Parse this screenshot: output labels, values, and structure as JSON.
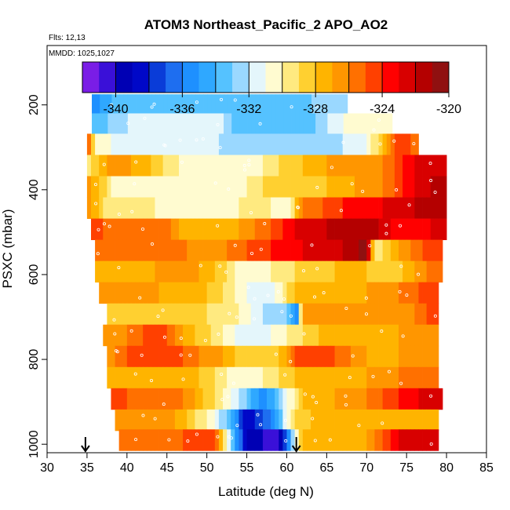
{
  "chart_data": {
    "type": "heatmap",
    "title": "ATOM3 Northeast_Pacific_2 APO_AO2",
    "flights_text": "Flts: 12,13",
    "dates_text": "MMDD: 1025,1027",
    "xlabel": "Latitude (deg N)",
    "ylabel": "PSXC (mbar)",
    "xlim": [
      30,
      85
    ],
    "ylim": [
      1020,
      60
    ],
    "x_ticks": [
      30,
      35,
      40,
      45,
      50,
      55,
      60,
      65,
      70,
      75,
      80,
      85
    ],
    "y_ticks": [
      200,
      400,
      600,
      800,
      1000
    ],
    "colorbar": {
      "min": -342,
      "max": -320,
      "ticks": [
        -340,
        -336,
        -332,
        -328,
        -324,
        -320
      ],
      "colors": [
        "#7a1de6",
        "#3a10d8",
        "#0000b4",
        "#0008c8",
        "#0a3cd8",
        "#1e6ef0",
        "#1e90ff",
        "#2fa8ff",
        "#55c2ff",
        "#9ad8ff",
        "#e4f6fb",
        "#fffbd0",
        "#ffea80",
        "#ffd030",
        "#ffb400",
        "#ff9600",
        "#ff7000",
        "#ff4000",
        "#ff0000",
        "#d80000",
        "#b40000",
        "#901010"
      ]
    },
    "arrows": [
      {
        "lat": 34.8,
        "label": "profile marker"
      },
      {
        "lat": 61.2,
        "label": "profile marker"
      }
    ],
    "rows": [
      {
        "p": 200,
        "lat_start": 35.6,
        "lat_end": 67.6,
        "knots": [
          [
            35.6,
            -336
          ],
          [
            38,
            -334
          ],
          [
            55,
            -334
          ],
          [
            63,
            -333
          ],
          [
            67.6,
            -333
          ]
        ]
      },
      {
        "p": 245,
        "lat_start": 35.6,
        "lat_end": 73.2,
        "knots": [
          [
            35.6,
            -334
          ],
          [
            40,
            -332
          ],
          [
            52,
            -331.5
          ],
          [
            53.5,
            -334
          ],
          [
            62,
            -334
          ],
          [
            67,
            -331
          ],
          [
            73.2,
            -330
          ]
        ]
      },
      {
        "p": 293,
        "lat_start": 35.0,
        "lat_end": 76.5,
        "knots": [
          [
            35.0,
            -324
          ],
          [
            36,
            -330
          ],
          [
            40,
            -332
          ],
          [
            48,
            -331
          ],
          [
            55,
            -333
          ],
          [
            64,
            -333
          ],
          [
            70,
            -331
          ],
          [
            72,
            -328
          ],
          [
            74,
            -324
          ],
          [
            76.5,
            -326
          ]
        ]
      },
      {
        "p": 343,
        "lat_start": 35.0,
        "lat_end": 80.0,
        "knots": [
          [
            35.0,
            -330
          ],
          [
            38,
            -326
          ],
          [
            43,
            -328
          ],
          [
            48,
            -331
          ],
          [
            57,
            -330
          ],
          [
            59,
            -329
          ],
          [
            65,
            -327
          ],
          [
            72,
            -326
          ],
          [
            76,
            -323
          ],
          [
            80,
            -322
          ]
        ]
      },
      {
        "p": 393,
        "lat_start": 35.0,
        "lat_end": 80.0,
        "knots": [
          [
            35.0,
            -326
          ],
          [
            38,
            -330
          ],
          [
            46,
            -331
          ],
          [
            55,
            -330
          ],
          [
            57,
            -329
          ],
          [
            65,
            -328
          ],
          [
            72,
            -326
          ],
          [
            76,
            -323
          ],
          [
            80,
            -321
          ]
        ]
      },
      {
        "p": 443,
        "lat_start": 35.0,
        "lat_end": 80.0,
        "knots": [
          [
            35.0,
            -326
          ],
          [
            37,
            -329
          ],
          [
            47,
            -330.5
          ],
          [
            54,
            -330
          ],
          [
            58,
            -330
          ],
          [
            60,
            -331
          ],
          [
            62,
            -326
          ],
          [
            67,
            -324
          ],
          [
            72,
            -323
          ],
          [
            76,
            -322
          ],
          [
            80,
            -321
          ]
        ]
      },
      {
        "p": 493,
        "lat_start": 35.5,
        "lat_end": 80.0,
        "knots": [
          [
            35.5,
            -324
          ],
          [
            38,
            -326
          ],
          [
            41,
            -326
          ],
          [
            44,
            -325
          ],
          [
            48,
            -328
          ],
          [
            54,
            -327
          ],
          [
            58,
            -325
          ],
          [
            61,
            -323
          ],
          [
            65,
            -322
          ],
          [
            70,
            -321
          ],
          [
            73,
            -323
          ],
          [
            76,
            -324
          ],
          [
            80,
            -322
          ]
        ]
      },
      {
        "p": 543,
        "lat_start": 36.0,
        "lat_end": 79.5,
        "knots": [
          [
            36.0,
            -326
          ],
          [
            40,
            -326
          ],
          [
            45,
            -325
          ],
          [
            50,
            -327
          ],
          [
            55,
            -325
          ],
          [
            58,
            -324
          ],
          [
            62,
            -323
          ],
          [
            67,
            -322
          ],
          [
            70,
            -320.5
          ],
          [
            71,
            -330
          ],
          [
            74,
            -327
          ],
          [
            77,
            -325
          ],
          [
            79.5,
            -324
          ]
        ]
      },
      {
        "p": 593,
        "lat_start": 36.0,
        "lat_end": 79.5,
        "knots": [
          [
            36.0,
            -328
          ],
          [
            40,
            -328
          ],
          [
            47,
            -326
          ],
          [
            51,
            -328
          ],
          [
            55,
            -331
          ],
          [
            58,
            -330
          ],
          [
            61,
            -329
          ],
          [
            66,
            -328
          ],
          [
            70,
            -328
          ],
          [
            73,
            -329
          ],
          [
            76,
            -327
          ],
          [
            79.5,
            -325
          ]
        ]
      },
      {
        "p": 643,
        "lat_start": 36.5,
        "lat_end": 79.0,
        "knots": [
          [
            36.5,
            -327
          ],
          [
            40,
            -326
          ],
          [
            44,
            -327
          ],
          [
            48,
            -327
          ],
          [
            52,
            -329
          ],
          [
            55,
            -331
          ],
          [
            58,
            -332
          ],
          [
            61,
            -328
          ],
          [
            65,
            -327
          ],
          [
            70,
            -327
          ],
          [
            74,
            -326
          ],
          [
            79,
            -324
          ]
        ]
      },
      {
        "p": 693,
        "lat_start": 37.5,
        "lat_end": 79.0,
        "knots": [
          [
            37.5,
            -328
          ],
          [
            42,
            -329
          ],
          [
            50,
            -329
          ],
          [
            54,
            -330
          ],
          [
            57,
            -332
          ],
          [
            60,
            -333
          ],
          [
            61.2,
            -336
          ],
          [
            62,
            -327
          ],
          [
            68,
            -326
          ],
          [
            72,
            -327
          ],
          [
            76,
            -326
          ],
          [
            79,
            -324
          ]
        ]
      },
      {
        "p": 743,
        "lat_start": 37.0,
        "lat_end": 79.0,
        "knots": [
          [
            37.0,
            -327
          ],
          [
            40,
            -326
          ],
          [
            44,
            -324
          ],
          [
            47,
            -327
          ],
          [
            52,
            -330
          ],
          [
            55,
            -332
          ],
          [
            58,
            -331
          ],
          [
            62,
            -329
          ],
          [
            66,
            -327
          ],
          [
            70,
            -327
          ],
          [
            74,
            -327
          ],
          [
            79,
            -326
          ]
        ]
      },
      {
        "p": 793,
        "lat_start": 37.5,
        "lat_end": 79.0,
        "knots": [
          [
            37.5,
            -327
          ],
          [
            40,
            -325
          ],
          [
            45,
            -324
          ],
          [
            49,
            -326
          ],
          [
            52,
            -327
          ],
          [
            55,
            -329
          ],
          [
            59,
            -328
          ],
          [
            62,
            -324
          ],
          [
            66,
            -325
          ],
          [
            70,
            -327
          ],
          [
            74,
            -327
          ],
          [
            79,
            -326
          ]
        ]
      },
      {
        "p": 843,
        "lat_start": 37.5,
        "lat_end": 79.0,
        "knots": [
          [
            37.5,
            -328
          ],
          [
            42,
            -327
          ],
          [
            47,
            -327
          ],
          [
            51,
            -329
          ],
          [
            54,
            -331
          ],
          [
            57,
            -330
          ],
          [
            61,
            -328
          ],
          [
            65,
            -327
          ],
          [
            70,
            -327
          ],
          [
            74,
            -326
          ],
          [
            79,
            -325
          ]
        ]
      },
      {
        "p": 893,
        "lat_start": 38.0,
        "lat_end": 79.5,
        "knots": [
          [
            38.0,
            -324
          ],
          [
            42,
            -326
          ],
          [
            47,
            -326
          ],
          [
            51,
            -329
          ],
          [
            54,
            -332
          ],
          [
            57,
            -336
          ],
          [
            59,
            -333
          ],
          [
            62,
            -328
          ],
          [
            66,
            -327
          ],
          [
            70,
            -326
          ],
          [
            74,
            -324
          ],
          [
            79.5,
            -322
          ]
        ]
      },
      {
        "p": 943,
        "lat_start": 38.5,
        "lat_end": 79.0,
        "knots": [
          [
            38.5,
            -327
          ],
          [
            42,
            -326
          ],
          [
            46,
            -327
          ],
          [
            50,
            -330
          ],
          [
            53,
            -334
          ],
          [
            55,
            -339
          ],
          [
            58,
            -336
          ],
          [
            61,
            -329
          ],
          [
            65,
            -327
          ],
          [
            70,
            -327
          ],
          [
            74,
            -328
          ],
          [
            79,
            -327
          ]
        ]
      },
      {
        "p": 990,
        "lat_start": 39.0,
        "lat_end": 79.0,
        "knots": [
          [
            39.0,
            -326
          ],
          [
            43,
            -326
          ],
          [
            47,
            -325
          ],
          [
            51,
            -324
          ],
          [
            53,
            -333
          ],
          [
            55,
            -339
          ],
          [
            59,
            -341
          ],
          [
            62,
            -327
          ],
          [
            66,
            -328
          ],
          [
            70,
            -327
          ],
          [
            74,
            -323
          ],
          [
            79,
            -322
          ]
        ]
      }
    ]
  }
}
